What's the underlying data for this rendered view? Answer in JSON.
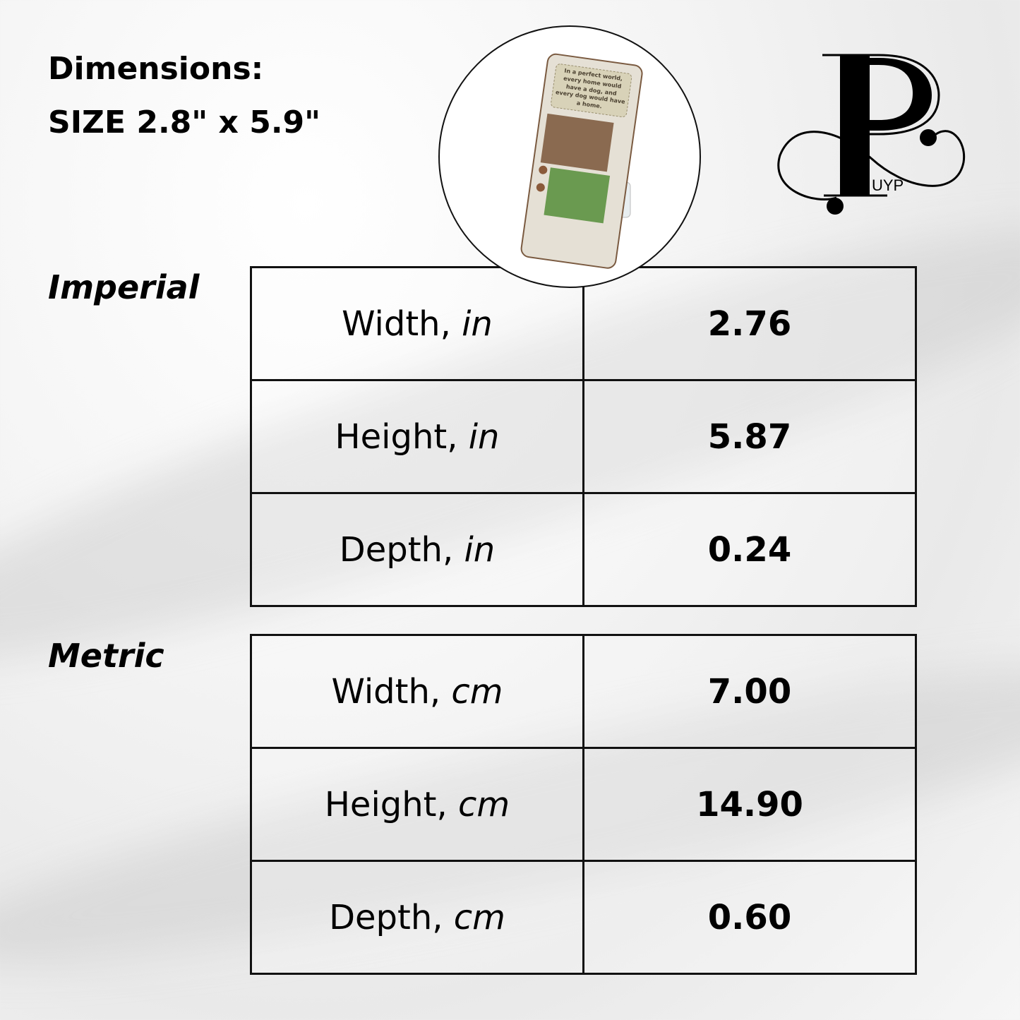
{
  "header": {
    "title": "Dimensions:",
    "size": "SIZE 2.8\" x 5.9\""
  },
  "product": {
    "quote": "In a perfect world, every home would have a dog, and every dog would have a home."
  },
  "logo": {
    "text": "PUYP",
    "letters": "UYP"
  },
  "imperial": {
    "label": "Imperial",
    "rows": [
      {
        "name": "Width, ",
        "unit": "in",
        "value": "2.76"
      },
      {
        "name": "Height, ",
        "unit": "in",
        "value": "5.87"
      },
      {
        "name": "Depth, ",
        "unit": "in",
        "value": "0.24"
      }
    ]
  },
  "metric": {
    "label": "Metric",
    "rows": [
      {
        "name": "Width, ",
        "unit": "cm",
        "value": "7.00"
      },
      {
        "name": "Height, ",
        "unit": "cm",
        "value": "14.90"
      },
      {
        "name": "Depth, ",
        "unit": "cm",
        "value": "0.60"
      }
    ]
  }
}
